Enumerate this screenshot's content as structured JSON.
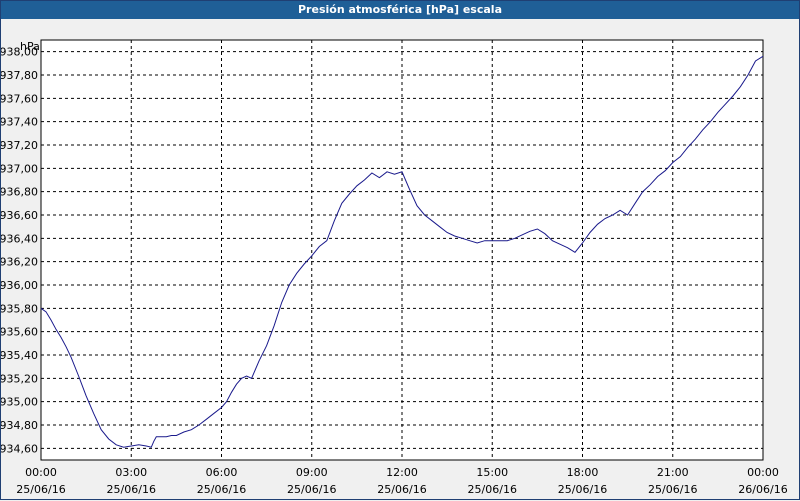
{
  "window": {
    "title": "Presión atmosférica [hPa] escala"
  },
  "colors": {
    "line": "#1a1a8c",
    "grid": "#000000",
    "plot_bg": "#ffffff",
    "title_bar": "#1f5f97"
  },
  "chart_data": {
    "type": "line",
    "title": "Presión atmosférica [hPa] escala",
    "ylabel": "hPa",
    "ylim": [
      934.5,
      938.1
    ],
    "yticks": [
      "934,60",
      "934,80",
      "935,00",
      "935,20",
      "935,40",
      "935,60",
      "935,80",
      "936,00",
      "936,20",
      "936,40",
      "936,60",
      "936,80",
      "937,00",
      "937,20",
      "937,40",
      "937,60",
      "937,80",
      "938,00"
    ],
    "xticks": [
      {
        "time": "00:00",
        "date": "25/06/16"
      },
      {
        "time": "03:00",
        "date": "25/06/16"
      },
      {
        "time": "06:00",
        "date": "25/06/16"
      },
      {
        "time": "09:00",
        "date": "25/06/16"
      },
      {
        "time": "12:00",
        "date": "25/06/16"
      },
      {
        "time": "15:00",
        "date": "25/06/16"
      },
      {
        "time": "18:00",
        "date": "25/06/16"
      },
      {
        "time": "21:00",
        "date": "25/06/16"
      },
      {
        "time": "00:00",
        "date": "26/06/16"
      }
    ],
    "grid": true,
    "series": [
      {
        "x": [
          "00:00",
          "00:10",
          "00:20",
          "00:30",
          "00:40",
          "00:50",
          "01:00",
          "01:15",
          "01:30",
          "01:45",
          "02:00",
          "02:15",
          "02:30",
          "02:45",
          "03:00",
          "03:15",
          "03:30",
          "03:40",
          "03:45",
          "03:50",
          "04:00",
          "04:10",
          "04:20",
          "04:30",
          "04:45",
          "05:00",
          "05:15",
          "05:30",
          "05:45",
          "06:00",
          "06:10",
          "06:20",
          "06:30",
          "06:40",
          "06:50",
          "07:00",
          "07:15",
          "07:30",
          "07:45",
          "08:00",
          "08:15",
          "08:30",
          "08:45",
          "09:00",
          "09:15",
          "09:30",
          "09:45",
          "10:00",
          "10:15",
          "10:30",
          "10:45",
          "11:00",
          "11:15",
          "11:30",
          "11:45",
          "12:00",
          "12:15",
          "12:30",
          "12:45",
          "13:00",
          "13:15",
          "13:30",
          "13:45",
          "14:00",
          "14:15",
          "14:30",
          "14:45",
          "15:00",
          "15:15",
          "15:30",
          "15:45",
          "16:00",
          "16:15",
          "16:30",
          "16:45",
          "17:00",
          "17:15",
          "17:30",
          "17:45",
          "18:00",
          "18:15",
          "18:30",
          "18:45",
          "19:00",
          "19:15",
          "19:30",
          "19:45",
          "20:00",
          "20:15",
          "20:30",
          "20:45",
          "21:00",
          "21:15",
          "21:30",
          "21:45",
          "22:00",
          "22:15",
          "22:30",
          "22:45",
          "23:00",
          "23:15",
          "23:30",
          "23:45",
          "00:00"
        ],
        "y": [
          935.8,
          935.77,
          935.7,
          935.62,
          935.55,
          935.47,
          935.38,
          935.22,
          935.05,
          934.9,
          934.76,
          934.68,
          934.63,
          934.61,
          934.62,
          934.63,
          934.62,
          934.61,
          934.66,
          934.7,
          934.7,
          934.7,
          934.71,
          934.71,
          934.74,
          934.76,
          934.8,
          934.85,
          934.9,
          934.95,
          935.0,
          935.08,
          935.15,
          935.2,
          935.22,
          935.2,
          935.35,
          935.48,
          935.65,
          935.85,
          936.0,
          936.1,
          936.18,
          936.25,
          936.33,
          936.38,
          936.55,
          936.7,
          936.78,
          936.85,
          936.9,
          936.96,
          936.92,
          936.97,
          936.95,
          936.97,
          936.82,
          936.68,
          936.6,
          936.55,
          936.5,
          936.45,
          936.42,
          936.4,
          936.38,
          936.36,
          936.38,
          936.38,
          936.38,
          936.38,
          936.4,
          936.43,
          936.46,
          936.48,
          936.44,
          936.38,
          936.35,
          936.32,
          936.28,
          936.36,
          936.45,
          936.52,
          936.57,
          936.6,
          936.64,
          936.6,
          936.7,
          936.8,
          936.86,
          936.93,
          936.98,
          937.05,
          937.1,
          937.18,
          937.25,
          937.33,
          937.4,
          937.48,
          937.55,
          937.62,
          937.7,
          937.8,
          937.92,
          937.96
        ]
      }
    ]
  }
}
